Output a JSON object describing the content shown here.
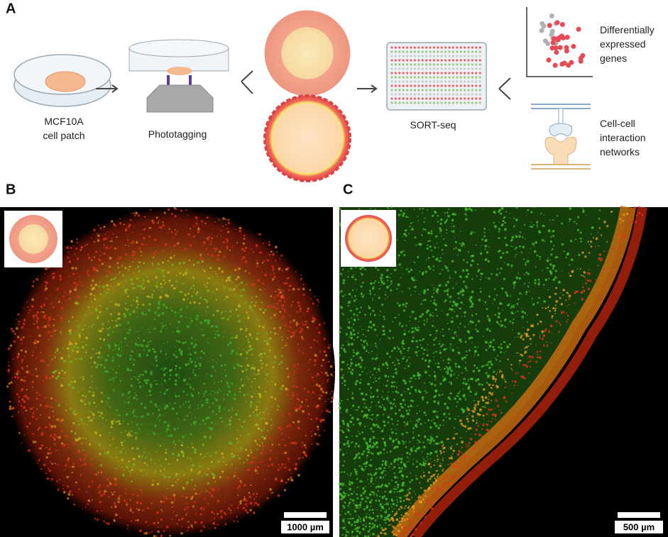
{
  "panel_a": {
    "label": "A",
    "steps": [
      {
        "lines": [
          "MCF10A",
          "cell patch"
        ]
      },
      {
        "lines": [
          "Phototagging"
        ]
      },
      {
        "lines": [
          "SORT-seq"
        ]
      }
    ],
    "outputs": [
      {
        "lines": [
          "Differentially",
          "expressed",
          "genes"
        ]
      },
      {
        "lines": [
          "Cell-cell",
          "interaction",
          "networks"
        ]
      }
    ]
  },
  "panel_b": {
    "label": "B",
    "scale_bar": "1000 µm"
  },
  "panel_c": {
    "label": "C",
    "scale_bar": "500 µm"
  }
}
